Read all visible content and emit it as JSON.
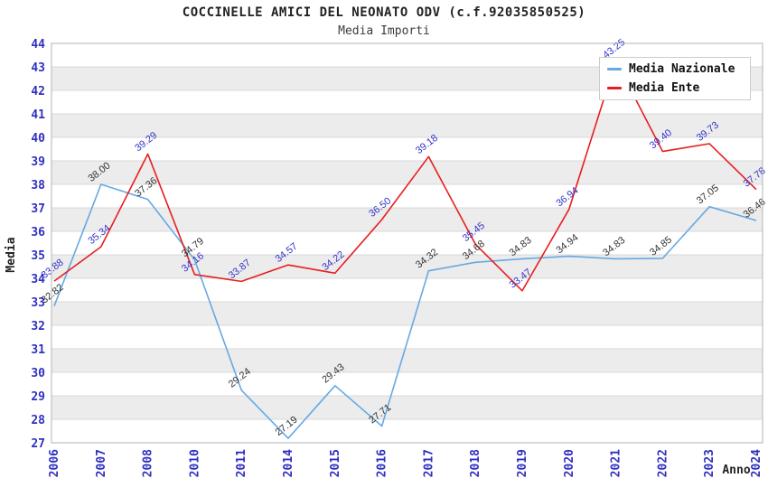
{
  "title": "COCCINELLE AMICI DEL NEONATO ODV (c.f.92035850525)",
  "subtitle": "Media Importi",
  "chart_data": {
    "type": "line",
    "title": "COCCINELLE AMICI DEL NEONATO ODV (c.f.92035850525)",
    "subtitle": "Media Importi",
    "xlabel": "Anno",
    "ylabel": "Media",
    "ylim": [
      27,
      44
    ],
    "y_tick_step": 1,
    "grid": "horizontal-bands",
    "legend_position": "top-right",
    "categories": [
      "2006",
      "2007",
      "2008",
      "2010",
      "2011",
      "2014",
      "2015",
      "2016",
      "2017",
      "2018",
      "2019",
      "2020",
      "2021",
      "2022",
      "2023",
      "2024"
    ],
    "series": [
      {
        "name": "Media Nazionale",
        "color": "#66a9e3",
        "label_color": "#333333",
        "values": [
          32.82,
          38.0,
          37.36,
          34.79,
          29.24,
          27.19,
          29.43,
          27.71,
          34.32,
          34.68,
          34.83,
          34.94,
          34.83,
          34.85,
          37.05,
          36.46
        ]
      },
      {
        "name": "Media Ente",
        "color": "#e81e1e",
        "label_color": "#3333cc",
        "values": [
          33.88,
          35.34,
          39.29,
          34.16,
          33.87,
          34.57,
          34.22,
          36.5,
          39.18,
          35.45,
          33.47,
          36.94,
          43.25,
          39.4,
          39.73,
          37.78
        ]
      }
    ],
    "colors": {
      "tick_label": "#3030c0",
      "band_gray": "#ececec",
      "band_white": "#ffffff",
      "gridline": "#d9d9d9",
      "plot_border": "#b3b3b3"
    }
  }
}
